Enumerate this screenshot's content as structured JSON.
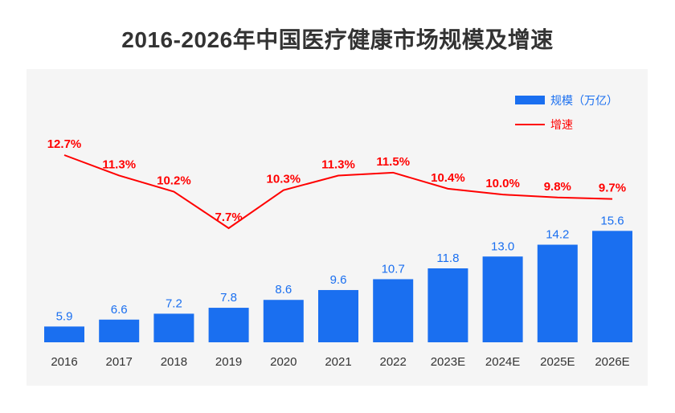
{
  "chart_data": {
    "type": "bar+line",
    "title": "2016-2026年中国医疗健康市场规模及增速",
    "categories": [
      "2016",
      "2017",
      "2018",
      "2019",
      "2020",
      "2021",
      "2022",
      "2023E",
      "2024E",
      "2025E",
      "2026E"
    ],
    "series": [
      {
        "name": "规模（万亿）",
        "type": "bar",
        "color": "#1a6ff0",
        "values": [
          5.9,
          6.6,
          7.2,
          7.8,
          8.6,
          9.6,
          10.7,
          11.8,
          13.0,
          14.2,
          15.6
        ],
        "labels": [
          "5.9",
          "6.6",
          "7.2",
          "7.8",
          "8.6",
          "9.6",
          "10.7",
          "11.8",
          "13.0",
          "14.2",
          "15.6"
        ],
        "ylim": [
          4.3,
          16
        ]
      },
      {
        "name": "增速",
        "type": "line",
        "color": "#ff0000",
        "values": [
          12.7,
          11.3,
          10.2,
          7.7,
          10.3,
          11.3,
          11.5,
          10.4,
          10.0,
          9.8,
          9.7
        ],
        "labels": [
          "12.7%",
          "11.3%",
          "10.2%",
          "7.7%",
          "10.3%",
          "11.3%",
          "11.5%",
          "10.4%",
          "10.0%",
          "9.8%",
          "9.7%"
        ]
      }
    ],
    "legend_position": "top-right",
    "grid": false
  }
}
